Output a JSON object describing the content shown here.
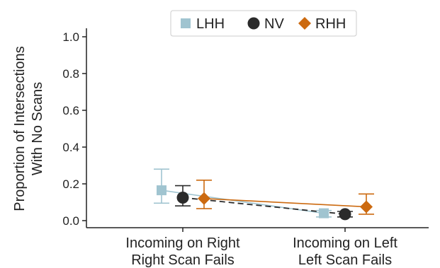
{
  "chart_data": {
    "type": "line",
    "title": "",
    "xlabel": "",
    "ylabel": [
      "Proportion of Intersections",
      "With No Scans"
    ],
    "ylim": [
      0,
      1.0
    ],
    "yticks": [
      "0.0",
      "0.2",
      "0.4",
      "0.6",
      "0.8",
      "1.0"
    ],
    "categories": [
      [
        "Incoming on Right",
        "Right Scan Fails"
      ],
      [
        "Incoming on Left",
        "Left Scan Fails"
      ]
    ],
    "legend_position": "top-center",
    "grid": false,
    "series": [
      {
        "name": "LHH",
        "marker": "square",
        "color": "#a0c4d0",
        "line": "solid",
        "values": [
          0.165,
          0.04
        ],
        "err_low": [
          0.095,
          0.02
        ],
        "err_high": [
          0.28,
          0.055
        ]
      },
      {
        "name": "NV",
        "marker": "circle",
        "color": "#2b2b2b",
        "line": "dashed",
        "values": [
          0.125,
          0.035
        ],
        "err_low": [
          0.08,
          0.02
        ],
        "err_high": [
          0.19,
          0.05
        ]
      },
      {
        "name": "RHH",
        "marker": "diamond",
        "color": "#cc6a10",
        "line": "solid",
        "values": [
          0.12,
          0.075
        ],
        "err_low": [
          0.065,
          0.035
        ],
        "err_high": [
          0.22,
          0.145
        ]
      }
    ]
  }
}
